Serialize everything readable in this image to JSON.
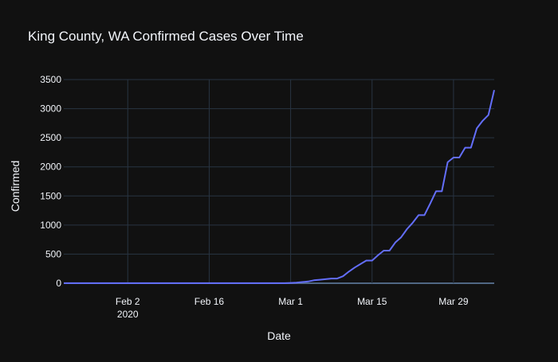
{
  "chart_data": {
    "type": "line",
    "title": "King County, WA Confirmed Cases Over Time",
    "xlabel": "Date",
    "ylabel": "Confirmed",
    "x_axis": {
      "type": "date",
      "range": [
        "2020-01-22",
        "2020-04-05"
      ],
      "ticks": [
        {
          "date": "2020-02-02",
          "label": "Feb 2",
          "sublabel": "2020"
        },
        {
          "date": "2020-02-16",
          "label": "Feb 16",
          "sublabel": ""
        },
        {
          "date": "2020-03-01",
          "label": "Mar 1",
          "sublabel": ""
        },
        {
          "date": "2020-03-15",
          "label": "Mar 15",
          "sublabel": ""
        },
        {
          "date": "2020-03-29",
          "label": "Mar 29",
          "sublabel": ""
        }
      ]
    },
    "y_axis": {
      "range": [
        0,
        3500
      ],
      "ticks": [
        0,
        500,
        1000,
        1500,
        2000,
        2500,
        3000,
        3500
      ]
    },
    "grid": true,
    "colors": {
      "background": "#111111",
      "grid": "#283442",
      "line": "#636efa",
      "text": "#f2f5fa"
    },
    "series": [
      {
        "x": [
          "2020-01-22",
          "2020-01-29",
          "2020-02-05",
          "2020-02-12",
          "2020-02-19",
          "2020-02-26",
          "2020-02-29",
          "2020-03-01",
          "2020-03-02",
          "2020-03-03",
          "2020-03-04",
          "2020-03-05",
          "2020-03-06",
          "2020-03-07",
          "2020-03-08",
          "2020-03-09",
          "2020-03-10",
          "2020-03-11",
          "2020-03-12",
          "2020-03-13",
          "2020-03-14",
          "2020-03-15",
          "2020-03-16",
          "2020-03-17",
          "2020-03-18",
          "2020-03-19",
          "2020-03-20",
          "2020-03-21",
          "2020-03-22",
          "2020-03-23",
          "2020-03-24",
          "2020-03-25",
          "2020-03-26",
          "2020-03-27",
          "2020-03-28",
          "2020-03-29",
          "2020-03-30",
          "2020-03-31",
          "2020-04-01",
          "2020-04-02",
          "2020-04-03",
          "2020-04-04",
          "2020-04-05"
        ],
        "y": [
          1,
          1,
          1,
          1,
          1,
          1,
          2,
          5,
          10,
          20,
          30,
          50,
          60,
          70,
          80,
          80,
          120,
          200,
          270,
          330,
          390,
          390,
          480,
          560,
          560,
          700,
          790,
          930,
          1040,
          1170,
          1170,
          1370,
          1580,
          1580,
          2080,
          2160,
          2160,
          2330,
          2330,
          2660,
          2790,
          2890,
          3320
        ]
      }
    ]
  }
}
